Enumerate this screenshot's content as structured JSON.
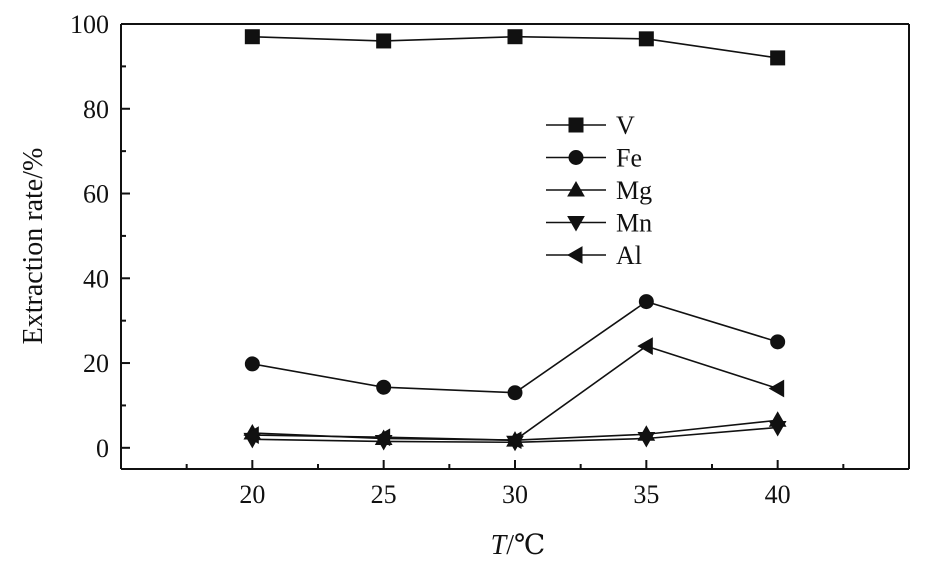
{
  "chart_data": {
    "type": "line",
    "title": "",
    "xlabel_italic": "T",
    "xlabel_rest": "/℃",
    "ylabel": "Extraction rate/%",
    "x": [
      20,
      25,
      30,
      35,
      40
    ],
    "xlim": [
      15,
      45
    ],
    "ylim": [
      -5,
      100
    ],
    "xticks": [
      "20",
      "25",
      "30",
      "35",
      "40"
    ],
    "yticks": [
      "0",
      "20",
      "40",
      "60",
      "80",
      "100"
    ],
    "grid": false,
    "legend_position": "center",
    "series": [
      {
        "name": "V",
        "marker": "square",
        "values": [
          97,
          96,
          97,
          96.5,
          92
        ]
      },
      {
        "name": "Fe",
        "marker": "circle",
        "values": [
          19.8,
          14.3,
          13,
          34.5,
          25
        ]
      },
      {
        "name": "Mg",
        "marker": "triangle-up",
        "values": [
          3.5,
          2.2,
          1.8,
          3.2,
          6.5
        ]
      },
      {
        "name": "Mn",
        "marker": "triangle-down",
        "values": [
          2,
          1.5,
          1.3,
          2.2,
          4.8
        ]
      },
      {
        "name": "Al",
        "marker": "triangle-left",
        "values": [
          3,
          2.5,
          1.8,
          24,
          14
        ]
      }
    ]
  }
}
